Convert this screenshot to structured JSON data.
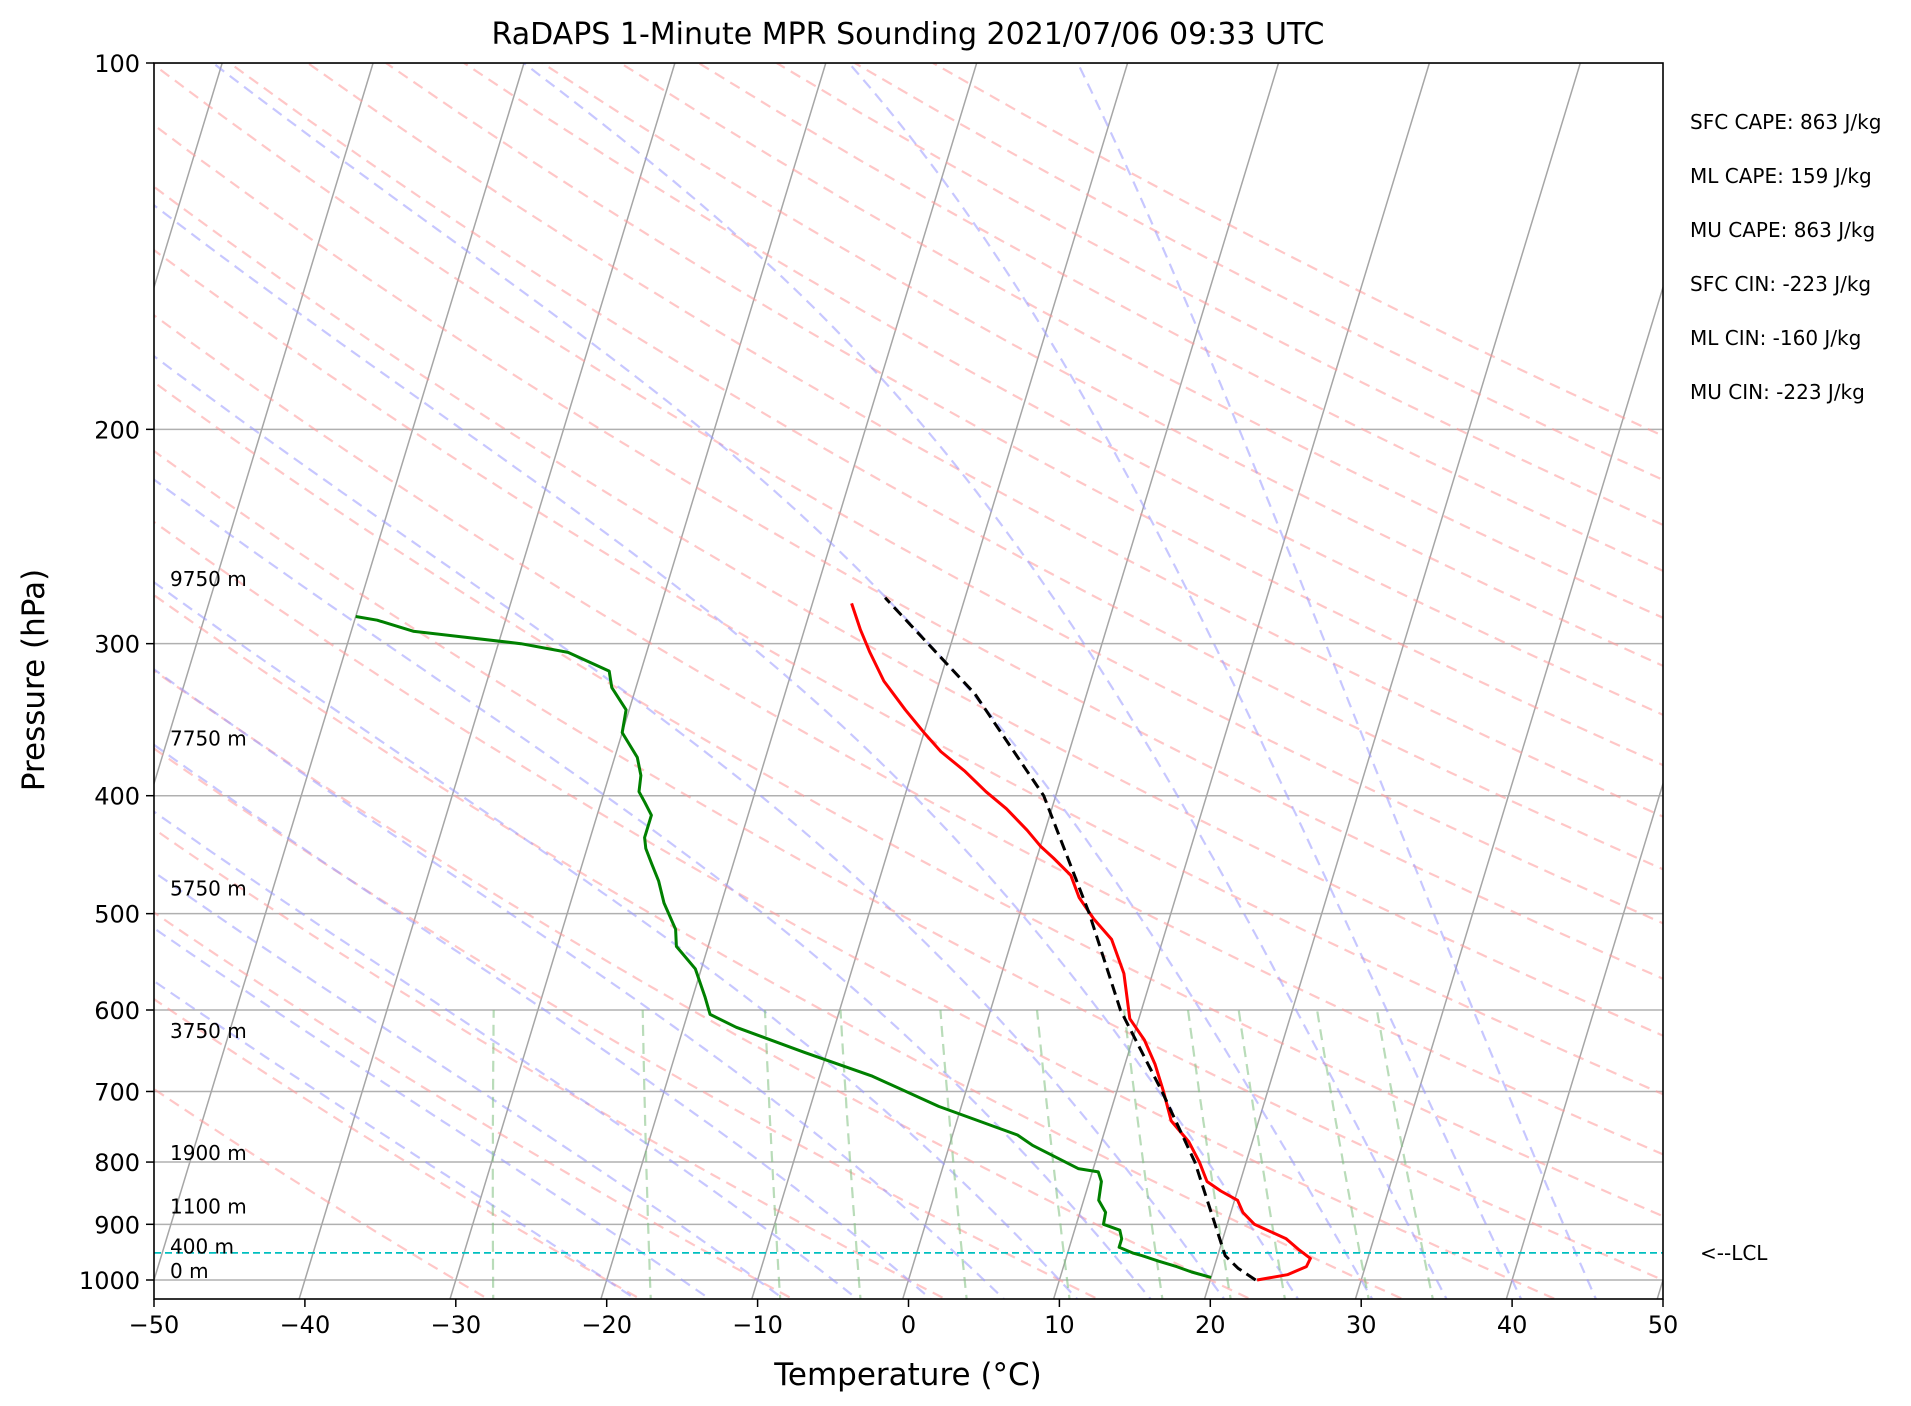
{
  "chart_data": {
    "type": "line",
    "title": "RaDAPS 1-Minute MPR Sounding 2021/07/06 09:33 UTC",
    "xlabel": "Temperature (°C)",
    "ylabel": "Pressure (hPa)",
    "xlim": [
      -50,
      50
    ],
    "ylim": [
      1050,
      100
    ],
    "y_scale": "log",
    "skew": "skew-T",
    "grid": true,
    "x_ticks": [
      "−50",
      "−40",
      "−30",
      "−20",
      "−10",
      "0",
      "10",
      "20",
      "30",
      "40",
      "50"
    ],
    "y_ticks": [
      "100",
      "200",
      "300",
      "400",
      "500",
      "600",
      "700",
      "800",
      "900",
      "1000"
    ],
    "series": [
      {
        "role": "temperature",
        "color": "#ff0000",
        "points": [
          [
            23.1,
            1000
          ],
          [
            25.0,
            990
          ],
          [
            26.1,
            975
          ],
          [
            26.2,
            960
          ],
          [
            25.3,
            945
          ],
          [
            24.2,
            925
          ],
          [
            21.8,
            900
          ],
          [
            20.8,
            880
          ],
          [
            20.2,
            860
          ],
          [
            18.9,
            845
          ],
          [
            17.8,
            830
          ],
          [
            16.9,
            800
          ],
          [
            15.8,
            770
          ],
          [
            14.2,
            740
          ],
          [
            13.1,
            700
          ],
          [
            12.0,
            665
          ],
          [
            10.8,
            635
          ],
          [
            9.4,
            610
          ],
          [
            8.1,
            560
          ],
          [
            6.6,
            525
          ],
          [
            5.0,
            505
          ],
          [
            3.6,
            485
          ],
          [
            2.6,
            465
          ],
          [
            1.1,
            450
          ],
          [
            0.0,
            440
          ],
          [
            -1.2,
            427
          ],
          [
            -3.0,
            410
          ],
          [
            -4.7,
            397
          ],
          [
            -6.5,
            382
          ],
          [
            -8.5,
            368
          ],
          [
            -10.0,
            355
          ],
          [
            -11.7,
            340
          ],
          [
            -13.7,
            322
          ],
          [
            -15.2,
            305
          ],
          [
            -16.3,
            292
          ],
          [
            -17.4,
            278
          ]
        ]
      },
      {
        "role": "dewpoint",
        "color": "#008000",
        "points": [
          [
            20.0,
            995
          ],
          [
            18.6,
            985
          ],
          [
            17.5,
            975
          ],
          [
            16.2,
            965
          ],
          [
            15.0,
            955
          ],
          [
            14.3,
            950
          ],
          [
            13.3,
            940
          ],
          [
            13.3,
            925
          ],
          [
            13.0,
            910
          ],
          [
            11.8,
            900
          ],
          [
            11.7,
            880
          ],
          [
            11.0,
            860
          ],
          [
            10.8,
            830
          ],
          [
            10.4,
            815
          ],
          [
            9.0,
            810
          ],
          [
            5.5,
            775
          ],
          [
            4.3,
            760
          ],
          [
            -1.5,
            720
          ],
          [
            -6.5,
            680
          ],
          [
            -11.5,
            650
          ],
          [
            -16.5,
            620
          ],
          [
            -18.5,
            605
          ],
          [
            -19.2,
            585
          ],
          [
            -20.4,
            555
          ],
          [
            -22.1,
            532
          ],
          [
            -22.5,
            515
          ],
          [
            -23.8,
            490
          ],
          [
            -24.6,
            470
          ],
          [
            -25.4,
            455
          ],
          [
            -26.1,
            442
          ],
          [
            -26.4,
            433
          ],
          [
            -26.4,
            415
          ],
          [
            -27.1,
            405
          ],
          [
            -27.7,
            397
          ],
          [
            -27.9,
            385
          ],
          [
            -28.5,
            372
          ],
          [
            -30.0,
            355
          ],
          [
            -30.2,
            340
          ],
          [
            -31.6,
            326
          ],
          [
            -32.1,
            316
          ],
          [
            -35.2,
            305
          ],
          [
            -38.5,
            300
          ],
          [
            -45.9,
            293
          ],
          [
            -48.5,
            287
          ],
          [
            -50.0,
            285
          ]
        ]
      },
      {
        "role": "parcel",
        "color": "#000000",
        "points": [
          [
            23.0,
            1000
          ],
          [
            21.6,
            978
          ],
          [
            20.5,
            955
          ],
          [
            16.6,
            800
          ],
          [
            13.0,
            700
          ],
          [
            8.6,
            600
          ],
          [
            4.6,
            500
          ],
          [
            -0.8,
            400
          ],
          [
            -7.4,
            330
          ],
          [
            -15.3,
            275
          ]
        ]
      }
    ],
    "height_annotations": [
      {
        "text": "9750 m",
        "p": 270
      },
      {
        "text": "7750 m",
        "p": 365
      },
      {
        "text": "5750 m",
        "p": 485
      },
      {
        "text": "3750 m",
        "p": 635
      },
      {
        "text": "1900 m",
        "p": 800
      },
      {
        "text": "1100 m",
        "p": 885
      },
      {
        "text": "400 m",
        "p": 955
      },
      {
        "text": "0 m",
        "p": 1000
      }
    ],
    "lcl": {
      "p": 950,
      "label": "<--LCL",
      "color": "#00bfbf"
    },
    "stats": [
      "SFC CAPE: 863 J/kg",
      "ML CAPE: 159 J/kg",
      "MU CAPE: 863 J/kg",
      "SFC CIN: -223 J/kg",
      "ML CIN: -160 J/kg",
      "MU CIN: -223 J/kg"
    ],
    "colors": {
      "isotherm": "#a6a6a6",
      "dry_adiabat": "#ff9999",
      "moist_adiabat": "#9999ff",
      "mixing_ratio": "#80c080"
    }
  }
}
